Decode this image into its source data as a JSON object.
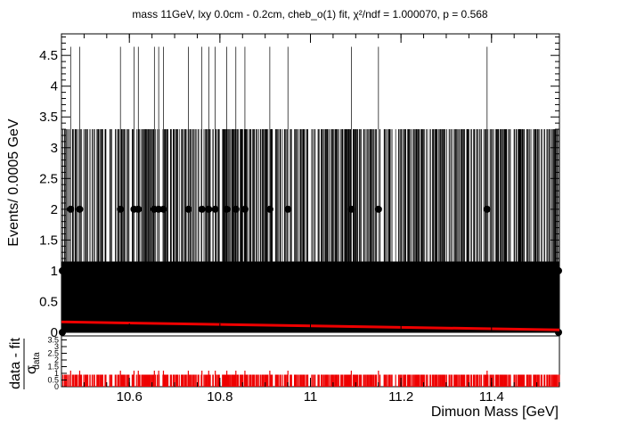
{
  "chart_data": [
    {
      "type": "scatter",
      "title": "mass 11GeV, lxy 0.0cm - 0.2cm, cheb_o(1) fit, χ²/ndf = 1.000070, p = 0.568",
      "ylabel": "Events/ 0.0005 GeV",
      "xlim": [
        10.45,
        11.55
      ],
      "ylim": [
        0,
        4.85
      ],
      "yticks": [
        "0",
        "0.5",
        "1",
        "1.5",
        "2",
        "2.5",
        "3",
        "3.5",
        "4",
        "4.5"
      ],
      "ytick_values": [
        0,
        0.5,
        1,
        1.5,
        2,
        2.5,
        3,
        3.5,
        4,
        4.5
      ],
      "bin_width": 0.0005,
      "count_two_x": [
        10.47,
        10.49,
        10.58,
        10.61,
        10.62,
        10.655,
        10.665,
        10.675,
        10.73,
        10.76,
        10.775,
        10.79,
        10.815,
        10.835,
        10.855,
        10.91,
        10.95,
        11.09,
        11.15,
        11.39
      ],
      "count_two_y": 2,
      "count_one_y": 1,
      "count_zero_y": 0,
      "error_upper_two": 4.64,
      "error_upper_one": 3.3,
      "error_upper_zero": 1.15,
      "fit": {
        "name": "cheb_o(1) fit",
        "color": "#ee0000",
        "x": [
          10.45,
          11.55
        ],
        "y": [
          0.17,
          0.04
        ]
      },
      "data_color": "#000000"
    },
    {
      "type": "bar",
      "ylabel_num": "data - fit",
      "ylabel_den": "σ",
      "ylabel_den_sub": "data",
      "xlabel": "Dimuon Mass [GeV]",
      "xlim": [
        10.45,
        11.55
      ],
      "xticks": [
        "10.6",
        "10.8",
        "11",
        "11.2",
        "11.4"
      ],
      "xtick_values": [
        10.6,
        10.8,
        11.0,
        11.2,
        11.4
      ],
      "ylim": [
        0,
        3.8
      ],
      "yticks": [
        "0",
        "0.5",
        "1",
        "1.5",
        "2",
        "2.5",
        "3",
        "3.5"
      ],
      "ytick_values": [
        0,
        0.5,
        1,
        1.5,
        2,
        2.5,
        3,
        3.5
      ],
      "pull_one": 0.9,
      "pull_two": 1.2,
      "bar_color": "#ee0000"
    }
  ]
}
